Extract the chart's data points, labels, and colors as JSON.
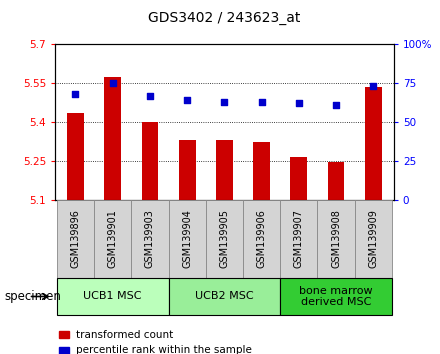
{
  "title": "GDS3402 / 243623_at",
  "samples": [
    "GSM139896",
    "GSM139901",
    "GSM139903",
    "GSM139904",
    "GSM139905",
    "GSM139906",
    "GSM139907",
    "GSM139908",
    "GSM139909"
  ],
  "bar_values": [
    5.435,
    5.575,
    5.4,
    5.33,
    5.33,
    5.325,
    5.265,
    5.245,
    5.535
  ],
  "percentile_values": [
    68,
    75,
    67,
    64,
    63,
    63,
    62,
    61,
    73
  ],
  "ylim_left": [
    5.1,
    5.7
  ],
  "ylim_right": [
    0,
    100
  ],
  "yticks_left": [
    5.1,
    5.25,
    5.4,
    5.55,
    5.7
  ],
  "yticks_right": [
    0,
    25,
    50,
    75,
    100
  ],
  "ytick_labels_left": [
    "5.1",
    "5.25",
    "5.4",
    "5.55",
    "5.7"
  ],
  "ytick_labels_right": [
    "0",
    "25",
    "50",
    "75",
    "100%"
  ],
  "bar_color": "#cc0000",
  "dot_color": "#0000cc",
  "groups": [
    {
      "label": "UCB1 MSC",
      "start": 0,
      "end": 3,
      "color": "#bbffbb"
    },
    {
      "label": "UCB2 MSC",
      "start": 3,
      "end": 6,
      "color": "#99ee99"
    },
    {
      "label": "bone marrow\nderived MSC",
      "start": 6,
      "end": 9,
      "color": "#33cc33"
    }
  ],
  "legend_bar_label": "transformed count",
  "legend_dot_label": "percentile rank within the sample",
  "specimen_label": "specimen",
  "bar_width": 0.45,
  "figsize": [
    4.4,
    3.54
  ],
  "dpi": 100,
  "bg_plot": "#ffffff",
  "sample_box_color": "#d4d4d4",
  "sample_box_edge": "#888888"
}
